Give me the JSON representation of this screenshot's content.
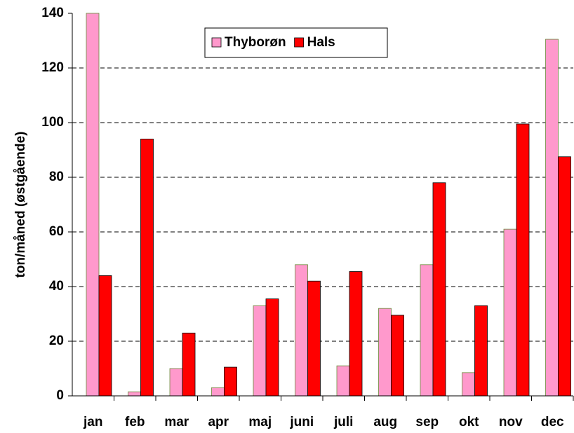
{
  "chart_data": {
    "type": "bar",
    "y_label": "ton/måned (østgående)",
    "categories": [
      "jan",
      "feb",
      "mar",
      "apr",
      "maj",
      "juni",
      "juli",
      "aug",
      "sep",
      "okt",
      "nov",
      "dec"
    ],
    "series": [
      {
        "name": "Thyborøn",
        "color": "#ff99cc",
        "values": [
          140,
          1.5,
          10,
          3,
          33,
          48,
          11,
          32,
          48,
          8.5,
          61,
          130.5
        ]
      },
      {
        "name": "Hals",
        "color": "#ff0000",
        "values": [
          44,
          94,
          23,
          10.5,
          35.5,
          42,
          45.5,
          29.5,
          78,
          33,
          99.5,
          87.5
        ]
      }
    ],
    "ylim": [
      0,
      140
    ],
    "yticks": [
      0,
      20,
      40,
      60,
      80,
      100,
      120,
      140
    ],
    "grid": true,
    "legend": "top"
  }
}
